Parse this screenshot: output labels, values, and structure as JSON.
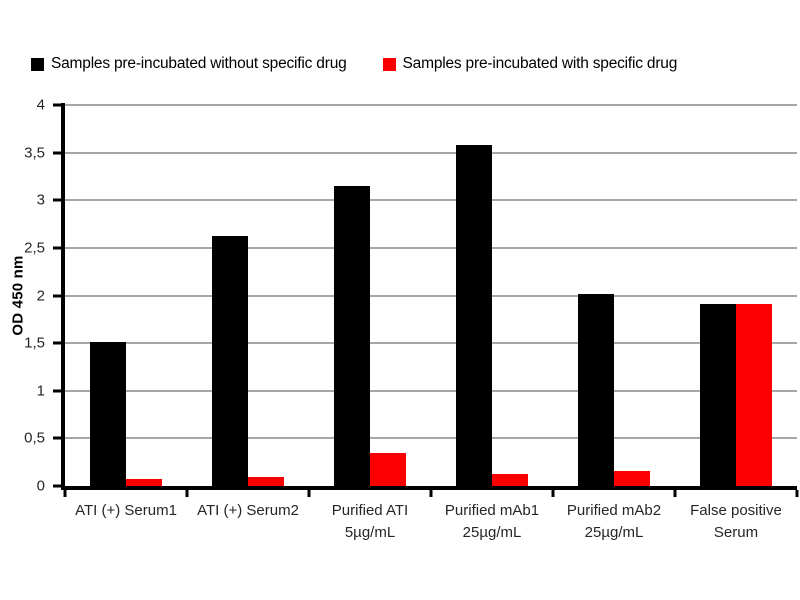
{
  "figure": {
    "background": "#ffffff"
  },
  "chart_data": {
    "type": "bar",
    "title": "",
    "xlabel": "",
    "ylabel": "OD 450 nm",
    "ylim": [
      0,
      4
    ],
    "ytick_step": 0.5,
    "grid": true,
    "legend_position": "top",
    "axis_color": "#000000",
    "grid_color": "#a6a6a6",
    "decimal_separator": ",",
    "categories": [
      "ATI (+) Serum1",
      "ATI (+) Serum2",
      "Purified ATI\n5µg/mL",
      "Purified mAb1\n25µg/mL",
      "Purified mAb2\n25µg/mL",
      "False positive\nSerum"
    ],
    "yticks": [
      {
        "value": 0,
        "label": "0"
      },
      {
        "value": 0.5,
        "label": "0,5"
      },
      {
        "value": 1,
        "label": "1"
      },
      {
        "value": 1.5,
        "label": "1,5"
      },
      {
        "value": 2,
        "label": "2"
      },
      {
        "value": 2.5,
        "label": "2,5"
      },
      {
        "value": 3,
        "label": "3"
      },
      {
        "value": 3.5,
        "label": "3,5"
      },
      {
        "value": 4,
        "label": "4"
      }
    ],
    "series": [
      {
        "name": "Samples pre-incubated without specific drug",
        "color": "#000000",
        "values": [
          1.51,
          2.63,
          3.15,
          3.58,
          2.02,
          1.91
        ]
      },
      {
        "name": "Samples pre-incubated with specific drug",
        "color": "#fa0000",
        "values": [
          0.07,
          0.09,
          0.35,
          0.13,
          0.16,
          1.91
        ]
      }
    ]
  }
}
